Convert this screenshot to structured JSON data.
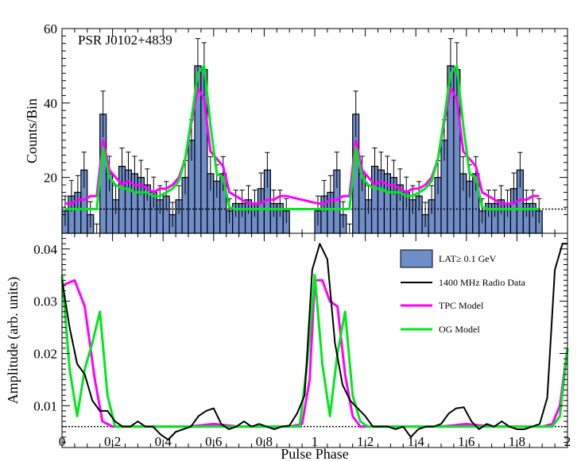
{
  "colors": {
    "hist_fill": "#6f8dc8",
    "radio": "#000000",
    "tpc": "#ff00ff",
    "og": "#00e81c",
    "baseline": "#000000"
  },
  "chart_data": [
    {
      "type": "histogram",
      "title": "PSR J0102+4839",
      "ylabel": "Counts/Bin",
      "xlim": [
        0,
        2
      ],
      "ylim": [
        5,
        60
      ],
      "yticks": [
        20,
        40,
        60
      ],
      "bin_width": 0.025,
      "counts": [
        11,
        15,
        16,
        22,
        10,
        5,
        37,
        21,
        14,
        23,
        22,
        21,
        20,
        18,
        16,
        14,
        15,
        10,
        14,
        20,
        30,
        50,
        49,
        21,
        19,
        21,
        11,
        13,
        13,
        14,
        13,
        17,
        22,
        13,
        13,
        11
      ],
      "count_errors": [
        4,
        4.2,
        4.5,
        4.8,
        3.5,
        2.5,
        6.2,
        4.7,
        3.8,
        4.9,
        4.8,
        4.7,
        4.6,
        4.3,
        4.1,
        3.8,
        3.9,
        3.3,
        3.8,
        4.5,
        5.5,
        7.3,
        7.2,
        4.6,
        4.4,
        4.6,
        3.3,
        3.6,
        3.6,
        3.8,
        3.6,
        4.2,
        4.7,
        3.6,
        3.6,
        3.3
      ],
      "background_level": 11.5,
      "series": [
        {
          "name": "TPC Model",
          "values": [
            13,
            13,
            14,
            14,
            15,
            15,
            30,
            22,
            20,
            18,
            19,
            18,
            18,
            17,
            16,
            17,
            17,
            18,
            20,
            25,
            35,
            44,
            41,
            27,
            25,
            23,
            16,
            15,
            14,
            13,
            13,
            13,
            14,
            14,
            15,
            15
          ]
        },
        {
          "name": "OG Model",
          "values": [
            11.5,
            11.5,
            11.5,
            11.5,
            11.5,
            11.5,
            28,
            20,
            18,
            17,
            17,
            16,
            16,
            16,
            15,
            15,
            16,
            17,
            19,
            25,
            36,
            48,
            50,
            34,
            21,
            20,
            12,
            11.5,
            11.5,
            11.5,
            11.5,
            11.5,
            11.5,
            11.5,
            11.5,
            11.5
          ]
        }
      ]
    },
    {
      "type": "line",
      "xlabel": "Pulse Phase",
      "ylabel": "Amplitude (arb. units)",
      "xlim": [
        0,
        2
      ],
      "ylim": [
        0.002,
        0.043
      ],
      "yticks": [
        0.01,
        0.02,
        0.03,
        0.04
      ],
      "ytick_labels": [
        "0.01",
        "0.02",
        "0.03",
        "0.04"
      ],
      "xticks": [
        0,
        0.2,
        0.4,
        0.6,
        0.8,
        1,
        1.2,
        1.4,
        1.6,
        1.8,
        2
      ],
      "xtick_labels": [
        "0",
        "0.2",
        "0.4",
        "0.6",
        "0.8",
        "1",
        "1.2",
        "1.4",
        "1.6",
        "1.8",
        "2"
      ],
      "background_level": 0.006,
      "legend": [
        "LAT≥ 0.1 GeV",
        "1400 MHz Radio Data",
        "TPC Model",
        "OG Model"
      ],
      "series": [
        {
          "name": "1400 MHz Radio Data",
          "x": [
            0,
            0.03,
            0.06,
            0.09,
            0.12,
            0.15,
            0.18,
            0.21,
            0.24,
            0.27,
            0.3,
            0.33,
            0.36,
            0.39,
            0.42,
            0.45,
            0.48,
            0.51,
            0.54,
            0.57,
            0.6,
            0.63,
            0.66,
            0.69,
            0.72,
            0.75,
            0.78,
            0.81,
            0.84,
            0.87,
            0.9,
            0.93,
            0.96,
            0.99,
            1.02,
            1.05,
            1.08,
            1.11,
            1.14,
            1.17,
            1.2,
            1.23,
            1.26,
            1.29,
            1.32,
            1.35,
            1.38,
            1.41,
            1.44,
            1.47,
            1.5,
            1.53,
            1.56,
            1.59,
            1.62,
            1.65,
            1.68,
            1.71,
            1.74,
            1.77,
            1.8,
            1.83,
            1.86,
            1.89,
            1.92,
            1.95,
            1.98,
            2
          ],
          "values": [
            0.034,
            0.025,
            0.018,
            0.016,
            0.011,
            0.009,
            0.009,
            0.007,
            0.006,
            0.006,
            0.007,
            0.006,
            0.006,
            0.0045,
            0.0035,
            0.005,
            0.0055,
            0.006,
            0.008,
            0.009,
            0.0095,
            0.0065,
            0.0055,
            0.006,
            0.007,
            0.006,
            0.0065,
            0.006,
            0.0055,
            0.006,
            0.0062,
            0.0085,
            0.012,
            0.036,
            0.041,
            0.038,
            0.022,
            0.014,
            0.011,
            0.0095,
            0.008,
            0.006,
            0.006,
            0.006,
            0.0055,
            0.006,
            0.004,
            0.0055,
            0.006,
            0.006,
            0.0065,
            0.0085,
            0.0095,
            0.0097,
            0.007,
            0.0055,
            0.0065,
            0.006,
            0.007,
            0.006,
            0.0055,
            0.0055,
            0.006,
            0.0065,
            0.0115,
            0.036,
            0.041,
            0.041
          ]
        },
        {
          "name": "TPC Model",
          "x": [
            0,
            0.05,
            0.09,
            0.13,
            0.16,
            0.2,
            0.3,
            0.4,
            0.5,
            0.6,
            0.7,
            0.8,
            0.9,
            0.95,
            0.98,
            1,
            1.03,
            1.06,
            1.09,
            1.12,
            1.15,
            1.18,
            1.2,
            1.3,
            1.4,
            1.5,
            1.6,
            1.7,
            1.8,
            1.9,
            1.94,
            1.97,
            2
          ],
          "values": [
            0.033,
            0.034,
            0.029,
            0.015,
            0.007,
            0.006,
            0.006,
            0.006,
            0.006,
            0.0065,
            0.006,
            0.006,
            0.006,
            0.0065,
            0.015,
            0.034,
            0.034,
            0.03,
            0.029,
            0.016,
            0.008,
            0.006,
            0.006,
            0.006,
            0.006,
            0.006,
            0.0065,
            0.006,
            0.006,
            0.006,
            0.0065,
            0.01,
            0.021
          ]
        },
        {
          "name": "OG Model",
          "x": [
            0,
            0.03,
            0.06,
            0.09,
            0.12,
            0.15,
            0.18,
            0.21,
            0.3,
            0.4,
            0.5,
            0.6,
            0.7,
            0.8,
            0.9,
            0.94,
            0.97,
            1,
            1.03,
            1.06,
            1.09,
            1.12,
            1.15,
            1.18,
            1.21,
            1.3,
            1.4,
            1.5,
            1.6,
            1.7,
            1.8,
            1.9,
            1.94,
            1.97,
            2
          ],
          "values": [
            0.035,
            0.017,
            0.008,
            0.017,
            0.022,
            0.028,
            0.012,
            0.006,
            0.006,
            0.006,
            0.006,
            0.006,
            0.006,
            0.006,
            0.006,
            0.006,
            0.018,
            0.035,
            0.018,
            0.008,
            0.02,
            0.028,
            0.012,
            0.007,
            0.006,
            0.006,
            0.006,
            0.006,
            0.006,
            0.006,
            0.006,
            0.006,
            0.006,
            0.008,
            0.021
          ]
        }
      ]
    }
  ]
}
